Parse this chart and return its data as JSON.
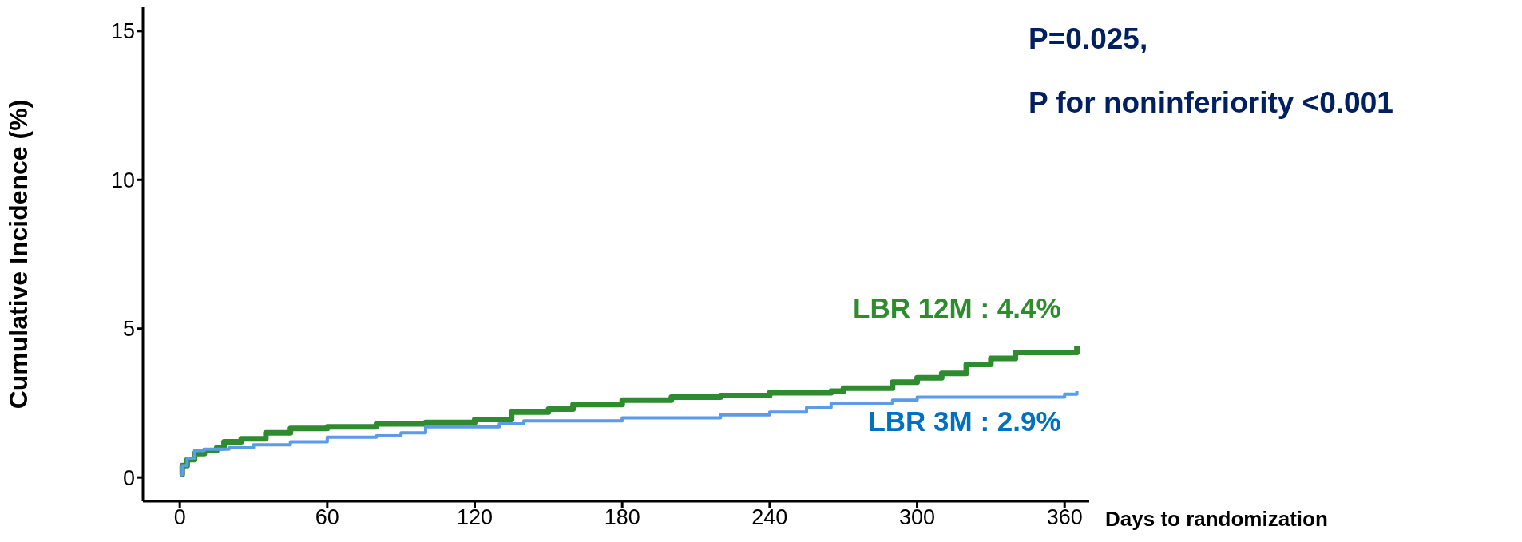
{
  "chart_data": {
    "type": "step",
    "xlabel": "Days to randomization",
    "ylabel": "Cumulative Incidence (%)",
    "xlim": [
      -15,
      370
    ],
    "xticks": [
      0,
      60,
      120,
      180,
      240,
      300,
      360
    ],
    "ylim": [
      -0.8,
      15.8
    ],
    "yticks": [
      0,
      5,
      10,
      15
    ],
    "marker": "none",
    "line_style": "solid",
    "series": [
      {
        "color": "#2e8b2e",
        "x": [
          0,
          1,
          3,
          6,
          10,
          15,
          18,
          25,
          35,
          45,
          60,
          80,
          100,
          120,
          135,
          150,
          160,
          180,
          200,
          220,
          240,
          265,
          270,
          290,
          300,
          310,
          320,
          330,
          340,
          365
        ],
        "values": [
          0.1,
          0.4,
          0.6,
          0.8,
          0.9,
          1.0,
          1.2,
          1.3,
          1.5,
          1.65,
          1.7,
          1.8,
          1.85,
          1.95,
          2.2,
          2.3,
          2.45,
          2.6,
          2.7,
          2.75,
          2.85,
          2.9,
          3.0,
          3.2,
          3.35,
          3.5,
          3.8,
          4.0,
          4.2,
          4.4
        ]
      },
      {
        "color": "#5b9be8",
        "x": [
          0,
          1,
          3,
          6,
          10,
          20,
          30,
          45,
          60,
          80,
          90,
          100,
          130,
          140,
          180,
          220,
          240,
          255,
          265,
          290,
          300,
          360,
          365
        ],
        "values": [
          0.1,
          0.4,
          0.65,
          0.9,
          0.95,
          1.0,
          1.1,
          1.2,
          1.35,
          1.4,
          1.5,
          1.7,
          1.8,
          1.9,
          2.0,
          2.1,
          2.2,
          2.35,
          2.5,
          2.6,
          2.7,
          2.8,
          2.9
        ]
      }
    ],
    "annotations": [
      {
        "text": "LBR 12M : 4.4%",
        "x": 365,
        "y": 4.4
      },
      {
        "text": "LBR 3M : 2.9%",
        "x": 365,
        "y": 2.9
      },
      "P=0.025,",
      "P for noninferiority <0.001"
    ]
  }
}
